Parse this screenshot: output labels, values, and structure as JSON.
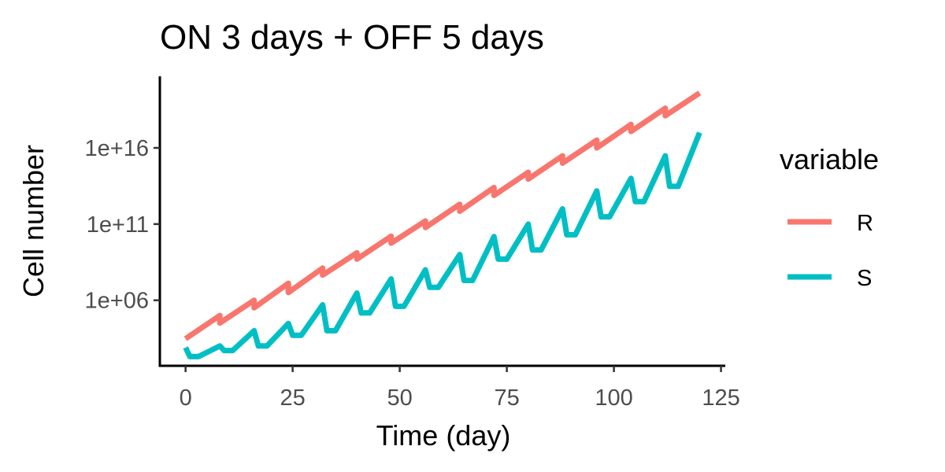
{
  "chart_data": {
    "type": "line",
    "title": "ON 3 days + OFF 5 days",
    "xlabel": "Time (day)",
    "ylabel": "Cell number",
    "x_ticks": [
      0,
      25,
      50,
      75,
      100,
      125
    ],
    "x_tick_labels": [
      "0",
      "25",
      "50",
      "75",
      "100",
      "125"
    ],
    "y_scale": "log10",
    "y_ticks": [
      1000000.0,
      100000000000.0,
      1e+16
    ],
    "y_tick_labels": [
      "1e+06",
      "1e+11",
      "1e+16"
    ],
    "xlim": [
      -6,
      126
    ],
    "ylim": [
      50.0,
      5e+20
    ],
    "grid": false,
    "legend": {
      "title": "variable",
      "position": "right"
    },
    "series": [
      {
        "name": "R",
        "color": "#F8766D",
        "x": [
          0,
          8,
          8,
          16,
          16,
          24,
          24,
          32,
          32,
          40,
          40,
          48,
          48,
          56,
          56,
          64,
          64,
          72,
          72,
          80,
          80,
          88,
          88,
          96,
          96,
          104,
          104,
          112,
          112,
          120
        ],
        "y": [
          3000.0,
          100000.0,
          32000.0,
          1000000.0,
          320000.0,
          13000000.0,
          3200000.0,
          130000000.0,
          45000000.0,
          1300000000.0,
          500000000.0,
          16000000000.0,
          5600000000.0,
          160000000000.0,
          60000000000.0,
          2000000000000.0,
          700000000000.0,
          25000000000000.0,
          7600000000000.0,
          250000000000000.0,
          90000000000000.0,
          3000000000000000.0,
          1000000000000000.0,
          3.2e+16,
          1e+16,
          3.5e+17,
          1.2e+17,
          4e+18,
          1.3e+18,
          4e+19
        ]
      },
      {
        "name": "S",
        "color": "#00BFC4",
        "x": [
          0,
          1,
          3,
          8,
          9,
          11,
          16,
          17,
          19,
          24,
          25,
          27,
          32,
          33,
          35,
          40,
          41,
          43,
          48,
          49,
          51,
          56,
          57,
          59,
          64,
          65,
          67,
          72,
          73,
          75,
          80,
          81,
          83,
          88,
          89,
          91,
          96,
          97,
          99,
          104,
          105,
          107,
          112,
          113,
          115,
          120
        ],
        "y": [
          800.0,
          200.0,
          200.0,
          1000.0,
          500.0,
          500.0,
          10000.0,
          1000.0,
          1000.0,
          30000.0,
          5000.0,
          5000.0,
          500000.0,
          10000.0,
          10000.0,
          3000000.0,
          150000.0,
          150000.0,
          25000000.0,
          400000.0,
          400000.0,
          100000000.0,
          7000000.0,
          7000000.0,
          1000000000.0,
          20000000.0,
          20000000.0,
          15000000000.0,
          500000000.0,
          500000000.0,
          100000000000.0,
          2000000000.0,
          2000000000.0,
          1000000000000.0,
          20000000000.0,
          20000000000.0,
          15000000000000.0,
          300000000000.0,
          300000000000.0,
          100000000000000.0,
          3000000000000.0,
          3000000000000.0,
          3000000000000000.0,
          30000000000000.0,
          30000000000000.0,
          1e+17
        ]
      }
    ]
  }
}
